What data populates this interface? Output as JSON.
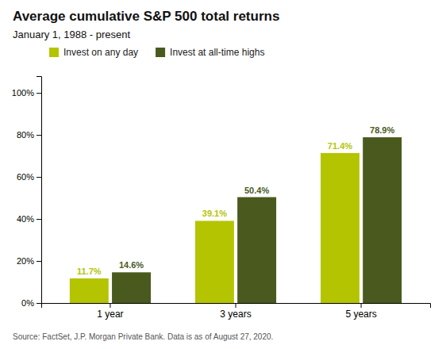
{
  "chart_data": {
    "type": "bar",
    "title": "Average cumulative S&P 500 total returns",
    "subtitle": "January 1, 1988 - present",
    "categories": [
      "1 year",
      "3 years",
      "5 years"
    ],
    "series": [
      {
        "name": "Invest on any day",
        "color": "#b5c400",
        "values": [
          11.7,
          39.1,
          71.4
        ],
        "value_labels": [
          "11.7%",
          "39.1%",
          "71.4%"
        ]
      },
      {
        "name": "Invest at all-time highs",
        "color": "#4a5a1e",
        "values": [
          14.6,
          50.4,
          78.9
        ],
        "value_labels": [
          "14.6%",
          "50.4%",
          "78.9%"
        ]
      }
    ],
    "ylim": [
      0,
      108
    ],
    "yticks": [
      {
        "value": 0,
        "label": "0%"
      },
      {
        "value": 20,
        "label": "20%"
      },
      {
        "value": 40,
        "label": "40%"
      },
      {
        "value": 60,
        "label": "60%"
      },
      {
        "value": 80,
        "label": "80%"
      },
      {
        "value": 100,
        "label": "100%"
      }
    ],
    "grid": false,
    "legend": "top",
    "data_labels": true,
    "annotations": [
      "Source: FactSet, J.P. Morgan Private Bank. Data is as of August 27, 2020."
    ]
  }
}
